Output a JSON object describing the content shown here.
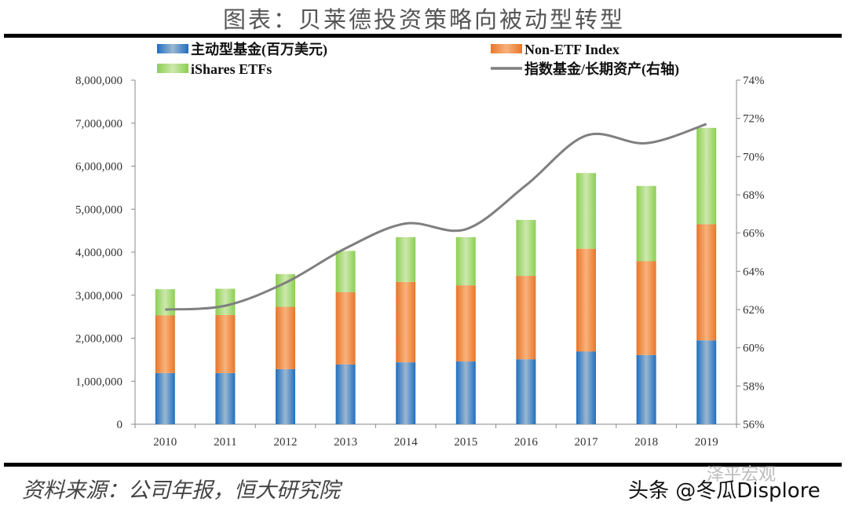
{
  "title": "图表：贝莱德投资策略向被动型转型",
  "source": "资料来源：公司年报，恒大研究院",
  "watermark": "头条 @冬瓜Displore",
  "watermark_faded": "泽平宏观",
  "chart_data": {
    "type": "bar",
    "stacked": true,
    "categories": [
      "2010",
      "2011",
      "2012",
      "2013",
      "2014",
      "2015",
      "2016",
      "2017",
      "2018",
      "2019"
    ],
    "series": [
      {
        "name": "主动型基金(百万美元)",
        "color": "#2e75b6",
        "values": [
          1190000,
          1190000,
          1280000,
          1390000,
          1440000,
          1460000,
          1510000,
          1690000,
          1610000,
          1950000
        ]
      },
      {
        "name": "Non-ETF Index",
        "color": "#ed7d31",
        "values": [
          1340000,
          1350000,
          1450000,
          1680000,
          1870000,
          1770000,
          1940000,
          2390000,
          2180000,
          2700000
        ]
      },
      {
        "name": "iShares ETFs",
        "color": "#92d050",
        "values": [
          610000,
          610000,
          760000,
          960000,
          1040000,
          1120000,
          1300000,
          1760000,
          1750000,
          2240000
        ]
      }
    ],
    "line_series": {
      "name": "指数基金/长期资产(右轴)",
      "color": "#7f7f7f",
      "axis": "right",
      "unit": "%",
      "values": [
        62.0,
        62.2,
        63.4,
        65.2,
        66.5,
        66.2,
        68.5,
        71.1,
        70.7,
        71.7
      ]
    },
    "ylim": [
      0,
      8000000
    ],
    "yticks": [
      "0",
      "1,000,000",
      "2,000,000",
      "3,000,000",
      "4,000,000",
      "5,000,000",
      "6,000,000",
      "7,000,000",
      "8,000,000"
    ],
    "y2lim": [
      56,
      74
    ],
    "y2ticks": [
      "56%",
      "58%",
      "60%",
      "62%",
      "64%",
      "66%",
      "68%",
      "70%",
      "72%",
      "74%"
    ],
    "grid": false,
    "legend_position": "top"
  }
}
